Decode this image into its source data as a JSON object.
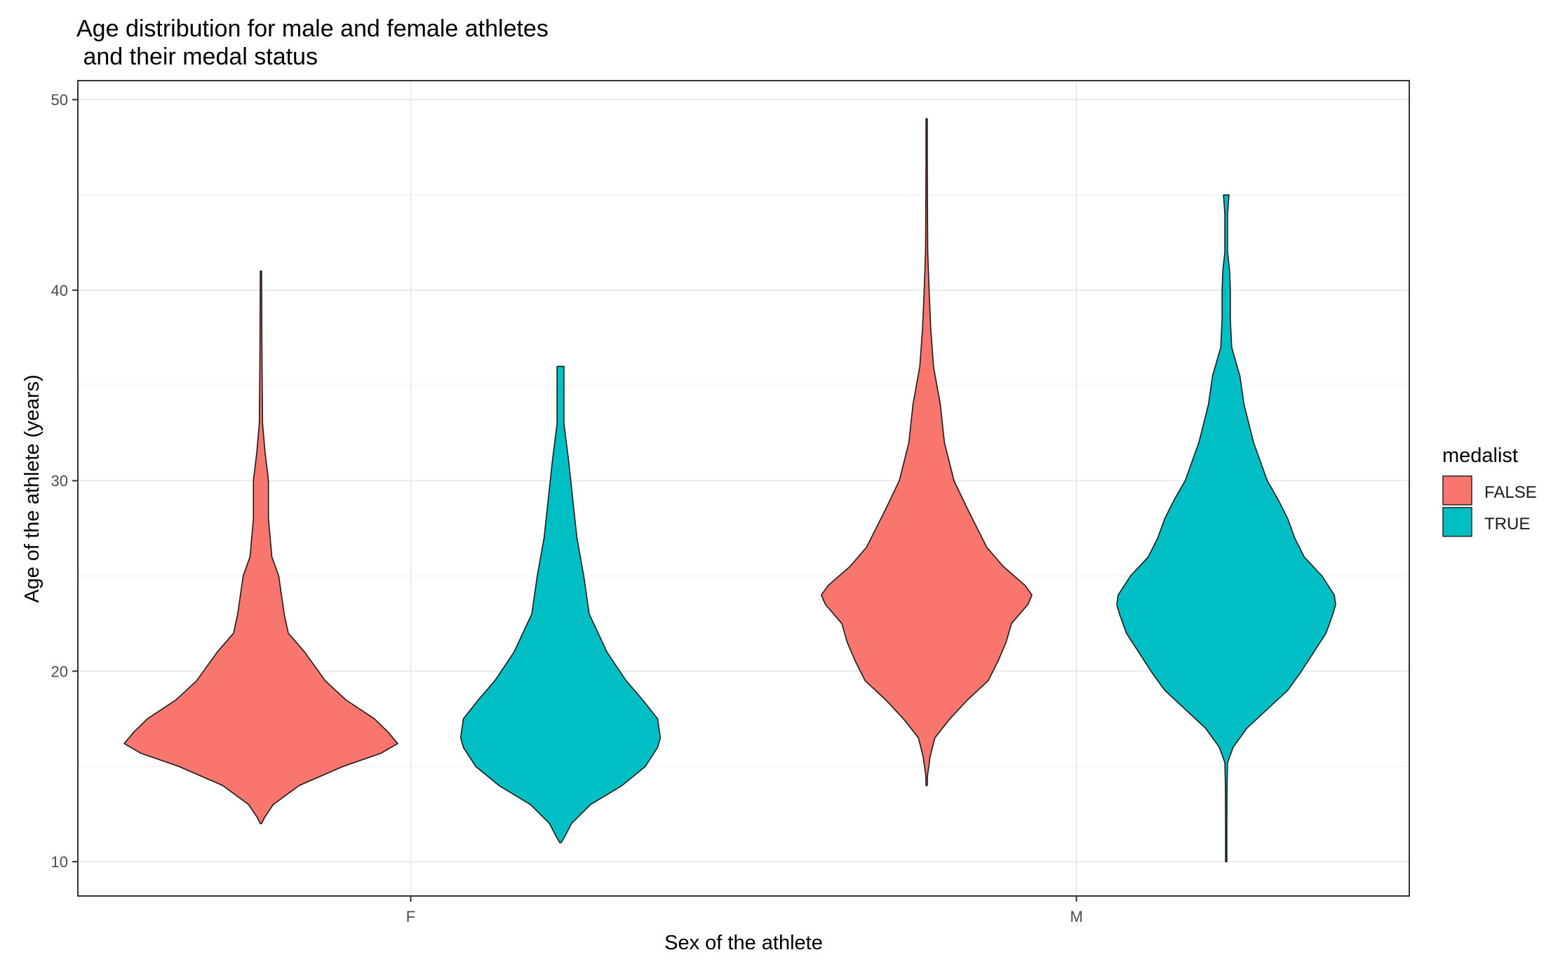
{
  "colors": {
    "FALSE": "#F8766D",
    "TRUE": "#00BFC4"
  },
  "chart_data": {
    "type": "violin",
    "title_lines": [
      "Age distribution for male and female athletes",
      " and their medal status"
    ],
    "xlabel": "Sex of the athlete",
    "ylabel": "Age of the athlete (years)",
    "categories": [
      "F",
      "M"
    ],
    "ylim": [
      8.2,
      51
    ],
    "y_ticks": [
      10,
      20,
      30,
      40,
      50
    ],
    "grid": true,
    "legend": {
      "title": "medalist",
      "position": "right",
      "entries": [
        "FALSE",
        "TRUE"
      ]
    },
    "series": [
      {
        "name": "FALSE",
        "category": "F",
        "min": 12,
        "max": 41,
        "profile": [
          [
            12.0,
            0.0
          ],
          [
            12.3,
            0.025
          ],
          [
            13.0,
            0.09
          ],
          [
            14.0,
            0.28
          ],
          [
            15.0,
            0.6
          ],
          [
            15.7,
            0.88
          ],
          [
            16.2,
            1.0
          ],
          [
            16.8,
            0.93
          ],
          [
            17.5,
            0.83
          ],
          [
            18.5,
            0.62
          ],
          [
            19.5,
            0.47
          ],
          [
            21.0,
            0.32
          ],
          [
            22.0,
            0.2
          ],
          [
            23.0,
            0.17
          ],
          [
            25.0,
            0.13
          ],
          [
            26.0,
            0.08
          ],
          [
            28.0,
            0.055
          ],
          [
            30.0,
            0.055
          ],
          [
            31.5,
            0.03
          ],
          [
            33.0,
            0.012
          ],
          [
            36.0,
            0.008
          ],
          [
            38.5,
            0.006
          ],
          [
            41.0,
            0.002
          ]
        ]
      },
      {
        "name": "TRUE",
        "category": "F",
        "min": 11,
        "max": 36,
        "profile": [
          [
            11.0,
            0.0
          ],
          [
            11.3,
            0.03
          ],
          [
            12.0,
            0.08
          ],
          [
            13.0,
            0.22
          ],
          [
            14.0,
            0.45
          ],
          [
            15.0,
            0.62
          ],
          [
            16.0,
            0.71
          ],
          [
            16.5,
            0.73
          ],
          [
            17.5,
            0.71
          ],
          [
            18.5,
            0.6
          ],
          [
            19.5,
            0.48
          ],
          [
            21.0,
            0.34
          ],
          [
            23.0,
            0.21
          ],
          [
            25.0,
            0.17
          ],
          [
            27.0,
            0.12
          ],
          [
            29.0,
            0.09
          ],
          [
            31.0,
            0.06
          ],
          [
            33.0,
            0.025
          ],
          [
            34.5,
            0.025
          ],
          [
            35.5,
            0.025
          ],
          [
            36.0,
            0.025
          ]
        ]
      },
      {
        "name": "FALSE",
        "category": "M",
        "min": 14,
        "max": 49,
        "profile": [
          [
            14.0,
            0.0
          ],
          [
            14.5,
            0.006
          ],
          [
            15.5,
            0.025
          ],
          [
            16.5,
            0.06
          ],
          [
            17.5,
            0.17
          ],
          [
            18.5,
            0.3
          ],
          [
            19.5,
            0.45
          ],
          [
            20.5,
            0.52
          ],
          [
            21.5,
            0.58
          ],
          [
            22.5,
            0.62
          ],
          [
            23.5,
            0.74
          ],
          [
            24.0,
            0.77
          ],
          [
            24.5,
            0.72
          ],
          [
            25.5,
            0.56
          ],
          [
            26.5,
            0.44
          ],
          [
            27.5,
            0.37
          ],
          [
            28.5,
            0.3
          ],
          [
            30.0,
            0.2
          ],
          [
            32.0,
            0.13
          ],
          [
            34.0,
            0.1
          ],
          [
            36.0,
            0.05
          ],
          [
            38.0,
            0.03
          ],
          [
            40.0,
            0.018
          ],
          [
            42.0,
            0.008
          ],
          [
            44.5,
            0.006
          ],
          [
            47.0,
            0.003
          ],
          [
            49.0,
            0.002
          ]
        ]
      },
      {
        "name": "TRUE",
        "category": "M",
        "min": 10,
        "max": 45,
        "profile": [
          [
            10.0,
            0.0
          ],
          [
            12.0,
            0.003
          ],
          [
            14.0,
            0.006
          ],
          [
            15.2,
            0.01
          ],
          [
            16.0,
            0.05
          ],
          [
            17.0,
            0.15
          ],
          [
            18.0,
            0.3
          ],
          [
            19.0,
            0.45
          ],
          [
            20.0,
            0.55
          ],
          [
            21.0,
            0.64
          ],
          [
            22.0,
            0.73
          ],
          [
            23.0,
            0.78
          ],
          [
            23.5,
            0.8
          ],
          [
            24.0,
            0.79
          ],
          [
            25.0,
            0.7
          ],
          [
            26.0,
            0.57
          ],
          [
            27.0,
            0.5
          ],
          [
            28.0,
            0.45
          ],
          [
            29.0,
            0.38
          ],
          [
            30.0,
            0.3
          ],
          [
            32.0,
            0.2
          ],
          [
            34.0,
            0.13
          ],
          [
            35.5,
            0.1
          ],
          [
            37.0,
            0.04
          ],
          [
            38.5,
            0.03
          ],
          [
            40.0,
            0.03
          ],
          [
            41.0,
            0.025
          ],
          [
            42.0,
            0.01
          ],
          [
            44.0,
            0.01
          ],
          [
            45.0,
            0.02
          ]
        ]
      }
    ]
  }
}
